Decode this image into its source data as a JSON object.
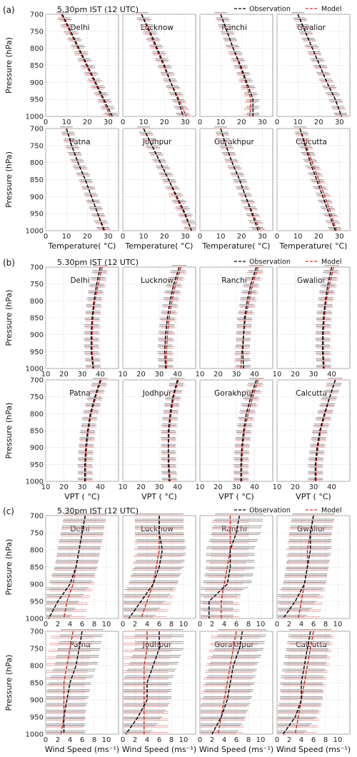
{
  "panels": [
    {
      "label": "(a)",
      "title": "5.30pm IST (12 UTC)",
      "legend": {
        "obs": "Observation",
        "model": "Model"
      },
      "ylabel": "Pressure (hPa)",
      "xlabel": "Temperature( °C)",
      "xticks": [
        "0",
        "10",
        "20",
        "30"
      ],
      "yticks": [
        "700",
        "750",
        "800",
        "850",
        "900",
        "950",
        "1000"
      ],
      "show_xlabel_top_row": false
    },
    {
      "label": "(b)",
      "title": "5.30pm IST (12 UTC)",
      "legend": {
        "obs": "Observation",
        "model": "Model"
      },
      "ylabel": "Pressure (hPa)",
      "xlabel": "VPT ( °C)",
      "xticks": [
        "10",
        "20",
        "30",
        "40"
      ],
      "yticks": [
        "700",
        "750",
        "800",
        "850",
        "900",
        "950",
        "1000"
      ],
      "show_xlabel_top_row": false
    },
    {
      "label": "(c)",
      "title": "5.30pm IST (12 UTC)",
      "legend": {
        "obs": "Observation",
        "model": "Model"
      },
      "ylabel": "Pressure (hPa)",
      "xlabel": "Wind Speed (ms⁻¹)",
      "xticks": [
        "0",
        "2",
        "4",
        "6",
        "8",
        "10"
      ],
      "yticks": [
        "700",
        "750",
        "800",
        "850",
        "900",
        "950",
        "1000"
      ],
      "show_xlabel_top_row": true
    }
  ],
  "stations": [
    "Delhi",
    "Lucknow",
    "Ranchi",
    "Gwalior",
    "Patna",
    "Jodhpur",
    "Gorakhpur",
    "Calcutta"
  ],
  "colors": {
    "observation": "#000000",
    "model": "#d62728",
    "model_err": "#e8a0a0",
    "obs_err": "#7a7a7a",
    "grid": "#d0d0d0"
  },
  "chart_data": [
    {
      "type": "line",
      "variable": "Temperature",
      "xlabel": "Temperature( °C)",
      "ylabel": "Pressure (hPa)",
      "xlim": [
        0,
        35
      ],
      "ylim": [
        1000,
        700
      ],
      "y": [
        700,
        750,
        800,
        850,
        900,
        950,
        1000
      ],
      "grid": true,
      "legend_position": "top-right",
      "series": [
        {
          "name": "Observation",
          "station": "Delhi",
          "x": [
            8,
            12,
            16,
            20,
            24,
            28,
            32
          ],
          "xerr": 3
        },
        {
          "name": "Model",
          "station": "Delhi",
          "x": [
            7.5,
            11.5,
            15.5,
            19.5,
            23.5,
            27.5,
            31
          ],
          "xerr": 3
        },
        {
          "name": "Observation",
          "station": "Lucknow",
          "x": [
            9,
            13,
            16.5,
            20,
            23,
            26.5,
            29
          ],
          "xerr": 3
        },
        {
          "name": "Model",
          "station": "Lucknow",
          "x": [
            9,
            12.5,
            16,
            19.5,
            23,
            27,
            30.5
          ],
          "xerr": 3
        },
        {
          "name": "Observation",
          "station": "Ranchi",
          "x": [
            10,
            13,
            16,
            19.5,
            22.5,
            25.5,
            25.5
          ],
          "xerr": 3
        },
        {
          "name": "Model",
          "station": "Ranchi",
          "x": [
            10,
            13,
            16,
            19,
            22,
            24.5,
            24
          ],
          "xerr": 3
        },
        {
          "name": "Observation",
          "station": "Gwalior",
          "x": [
            10,
            13.5,
            17,
            20.5,
            24,
            28,
            31
          ],
          "xerr": 3
        },
        {
          "name": "Model",
          "station": "Gwalior",
          "x": [
            10,
            13.5,
            17,
            20.5,
            24,
            28,
            31
          ],
          "xerr": 3
        },
        {
          "name": "Observation",
          "station": "Patna",
          "x": [
            10,
            12.5,
            15.5,
            19,
            22,
            25,
            28
          ],
          "xerr": 3
        },
        {
          "name": "Model",
          "station": "Patna",
          "x": [
            10,
            12.5,
            15.5,
            19,
            22,
            25,
            28.5
          ],
          "xerr": 3
        },
        {
          "name": "Observation",
          "station": "Jodhpur",
          "x": [
            10,
            14,
            18,
            22,
            26,
            30,
            33
          ],
          "xerr": 3
        },
        {
          "name": "Model",
          "station": "Jodhpur",
          "x": [
            10,
            14,
            18,
            22,
            25.5,
            29.5,
            33
          ],
          "xerr": 3
        },
        {
          "name": "Observation",
          "station": "Gorakhpur",
          "x": [
            10,
            12.5,
            15.5,
            19,
            22,
            25,
            28
          ],
          "xerr": 3
        },
        {
          "name": "Model",
          "station": "Gorakhpur",
          "x": [
            10,
            12.5,
            15.5,
            19,
            22,
            25.5,
            29
          ],
          "xerr": 3
        },
        {
          "name": "Observation",
          "station": "Calcutta",
          "x": [
            11,
            13.5,
            16,
            19,
            22,
            25,
            28
          ],
          "xerr": 3
        },
        {
          "name": "Model",
          "station": "Calcutta",
          "x": [
            11,
            14,
            17,
            20,
            23,
            26,
            28.5
          ],
          "xerr": 3
        }
      ]
    },
    {
      "type": "line",
      "variable": "VPT",
      "xlabel": "VPT ( °C)",
      "ylabel": "Pressure (hPa)",
      "xlim": [
        10,
        50
      ],
      "ylim": [
        1000,
        700
      ],
      "y": [
        700,
        750,
        800,
        850,
        900,
        950,
        1000
      ],
      "grid": true,
      "legend_position": "top-right",
      "series": [
        {
          "name": "Observation",
          "station": "Delhi",
          "x": [
            40,
            38,
            36.5,
            35.5,
            35,
            35,
            36
          ],
          "xerr": 4
        },
        {
          "name": "Model",
          "station": "Delhi",
          "x": [
            41,
            39,
            37,
            36,
            35.5,
            35.5,
            36.5
          ],
          "xerr": 4
        },
        {
          "name": "Observation",
          "station": "Lucknow",
          "x": [
            41,
            38,
            36,
            34.5,
            33.5,
            33,
            33.5
          ],
          "xerr": 4
        },
        {
          "name": "Model",
          "station": "Lucknow",
          "x": [
            42,
            39,
            37,
            35.5,
            34.5,
            34,
            34
          ],
          "xerr": 4
        },
        {
          "name": "Observation",
          "station": "Ranchi",
          "x": [
            41,
            38,
            36,
            34.5,
            34,
            33.5,
            34
          ],
          "xerr": 4
        },
        {
          "name": "Model",
          "station": "Ranchi",
          "x": [
            42,
            39,
            37,
            35,
            34,
            33,
            32.5
          ],
          "xerr": 4
        },
        {
          "name": "Observation",
          "station": "Gwalior",
          "x": [
            40,
            38,
            36.5,
            35.5,
            35,
            35,
            35.5
          ],
          "xerr": 4
        },
        {
          "name": "Model",
          "station": "Gwalior",
          "x": [
            41,
            39,
            37,
            36,
            35.5,
            35.5,
            36
          ],
          "xerr": 4
        },
        {
          "name": "Observation",
          "station": "Patna",
          "x": [
            40,
            37,
            34.5,
            33,
            32,
            31.5,
            31.5
          ],
          "xerr": 4
        },
        {
          "name": "Model",
          "station": "Patna",
          "x": [
            40.5,
            37.5,
            35,
            33.5,
            32.5,
            32,
            32
          ],
          "xerr": 4
        },
        {
          "name": "Observation",
          "station": "Jodhpur",
          "x": [
            40,
            37.5,
            36,
            35,
            35,
            35,
            35.5
          ],
          "xerr": 4
        },
        {
          "name": "Model",
          "station": "Jodhpur",
          "x": [
            40.5,
            38,
            36.5,
            35.5,
            35,
            35.5,
            36
          ],
          "xerr": 4
        },
        {
          "name": "Observation",
          "station": "Gorakhpur",
          "x": [
            41,
            38,
            35.5,
            34,
            33,
            32.5,
            32.5
          ],
          "xerr": 4
        },
        {
          "name": "Model",
          "station": "Gorakhpur",
          "x": [
            42,
            39,
            36.5,
            34.5,
            33.5,
            33,
            33
          ],
          "xerr": 4
        },
        {
          "name": "Observation",
          "station": "Calcutta",
          "x": [
            42,
            39,
            36,
            33.5,
            32,
            31,
            31
          ],
          "xerr": 4
        },
        {
          "name": "Model",
          "station": "Calcutta",
          "x": [
            42,
            39,
            36.5,
            34,
            32.5,
            31.5,
            31.5
          ],
          "xerr": 4
        }
      ]
    },
    {
      "type": "line",
      "variable": "Wind Speed",
      "xlabel": "Wind Speed (ms⁻¹)",
      "ylabel": "Pressure (hPa)",
      "xlim": [
        0,
        12
      ],
      "ylim": [
        1000,
        700
      ],
      "y": [
        700,
        750,
        800,
        850,
        900,
        950,
        1000
      ],
      "grid": true,
      "legend_position": "top-right",
      "series": [
        {
          "name": "Observation",
          "station": "Delhi",
          "x": [
            6.5,
            6,
            5.5,
            5,
            4,
            2,
            0.5
          ],
          "xerr": 3.5
        },
        {
          "name": "Model",
          "station": "Delhi",
          "x": [
            6.5,
            6,
            5.5,
            5,
            4.5,
            3.5,
            3
          ],
          "xerr": 3.5
        },
        {
          "name": "Observation",
          "station": "Lucknow",
          "x": [
            6,
            6,
            6.5,
            6,
            5,
            3,
            1
          ],
          "xerr": 4
        },
        {
          "name": "Model",
          "station": "Lucknow",
          "x": [
            6,
            6,
            6,
            5.5,
            5,
            4,
            3
          ],
          "xerr": 4
        },
        {
          "name": "Observation",
          "station": "Ranchi",
          "x": [
            6.5,
            6,
            5,
            5,
            4.5,
            1.5,
            1.5
          ],
          "xerr": 4
        },
        {
          "name": "Model",
          "station": "Ranchi",
          "x": [
            5,
            5,
            5,
            4.5,
            4,
            3.5,
            3.5
          ],
          "xerr": 3
        },
        {
          "name": "Observation",
          "station": "Gwalior",
          "x": [
            6,
            5.5,
            5.5,
            5,
            4.5,
            3,
            1
          ],
          "xerr": 3.5
        },
        {
          "name": "Model",
          "station": "Gwalior",
          "x": [
            6,
            5.5,
            5,
            5,
            4.5,
            4,
            3.5
          ],
          "xerr": 3.5
        },
        {
          "name": "Observation",
          "station": "Patna",
          "x": [
            6,
            5.5,
            5,
            4,
            3.5,
            3,
            3
          ],
          "xerr": 3.5
        },
        {
          "name": "Model",
          "station": "Patna",
          "x": [
            4.5,
            4,
            3.5,
            3,
            3,
            3,
            2.5
          ],
          "xerr": 3.5
        },
        {
          "name": "Observation",
          "station": "Jodhpur",
          "x": [
            6,
            6,
            5,
            4,
            4,
            2.5,
            0.5
          ],
          "xerr": 4
        },
        {
          "name": "Model",
          "station": "Jodhpur",
          "x": [
            4,
            4,
            3.5,
            3.5,
            3.5,
            3.5,
            3.5
          ],
          "xerr": 4
        },
        {
          "name": "Observation",
          "station": "Gorakhpur",
          "x": [
            7,
            6.5,
            5.5,
            5,
            4.5,
            3.5,
            2
          ],
          "xerr": 4
        },
        {
          "name": "Model",
          "station": "Gorakhpur",
          "x": [
            6,
            5.5,
            5,
            4.5,
            4,
            3.5,
            3
          ],
          "xerr": 4
        },
        {
          "name": "Observation",
          "station": "Calcutta",
          "x": [
            5.5,
            5,
            4.5,
            4,
            4,
            3,
            1
          ],
          "xerr": 3.5
        },
        {
          "name": "Model",
          "station": "Calcutta",
          "x": [
            6,
            5.5,
            5,
            4.5,
            4,
            3.5,
            3
          ],
          "xerr": 3.5
        }
      ]
    }
  ]
}
